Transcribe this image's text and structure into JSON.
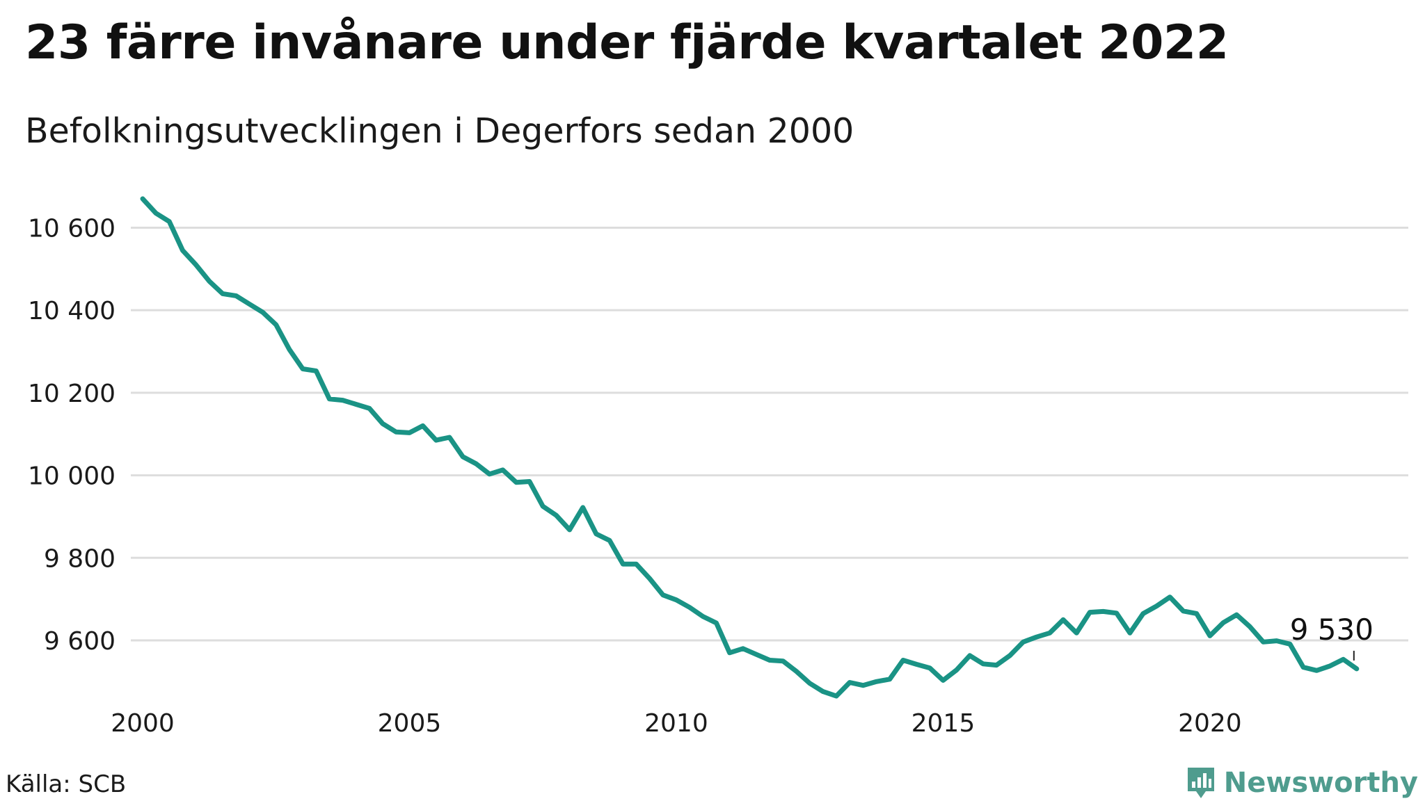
{
  "title": "23 färre invånare under fjärde kvartalet 2022",
  "subtitle": "Befolkningsutvecklingen i Degerfors sedan 2000",
  "source": "Källa: SCB",
  "brand": {
    "name": "Newsworthy",
    "icon": "newsworthy-logo-icon",
    "color": "#4f9c8e"
  },
  "colors": {
    "line": "#1a9385",
    "grid": "#dddddd",
    "text": "#1a1a1a"
  },
  "chart_data": {
    "type": "line",
    "title": "23 färre invånare under fjärde kvartalet 2022",
    "subtitle": "Befolkningsutvecklingen i Degerfors sedan 2000",
    "xlabel": "",
    "ylabel": "",
    "x_ticks": [
      "2000",
      "2005",
      "2010",
      "2015",
      "2020"
    ],
    "y_ticks": [
      "9 600",
      "9 800",
      "10 000",
      "10 200",
      "10 400",
      "10 600"
    ],
    "xlim": [
      2000,
      2023.3
    ],
    "ylim": [
      9450,
      10680
    ],
    "grid": "horizontal",
    "last_value_label": "9 530",
    "series": [
      {
        "x": [
          2000.0,
          2000.25,
          2000.5,
          2000.75,
          2001.0,
          2001.25,
          2001.5,
          2001.75,
          2002.0,
          2002.25,
          2002.5,
          2002.75,
          2003.0,
          2003.25,
          2003.5,
          2003.75,
          2004.0,
          2004.25,
          2004.5,
          2004.75,
          2005.0,
          2005.25,
          2005.5,
          2005.75,
          2006.0,
          2006.25,
          2006.5,
          2006.75,
          2007.0,
          2007.25,
          2007.5,
          2007.75,
          2008.0,
          2008.25,
          2008.5,
          2008.75,
          2009.0,
          2009.25,
          2009.5,
          2009.75,
          2010.0,
          2010.25,
          2010.5,
          2010.75,
          2011.0,
          2011.25,
          2011.5,
          2011.75,
          2012.0,
          2012.25,
          2012.5,
          2012.75,
          2013.0,
          2013.25,
          2013.5,
          2013.75,
          2014.0,
          2014.25,
          2014.5,
          2014.75,
          2015.0,
          2015.25,
          2015.5,
          2015.75,
          2016.0,
          2016.25,
          2016.5,
          2016.75,
          2017.0,
          2017.25,
          2017.5,
          2017.75,
          2018.0,
          2018.25,
          2018.5,
          2018.75,
          2019.0,
          2019.25,
          2019.5,
          2019.75,
          2020.0,
          2020.25,
          2020.5,
          2020.75,
          2021.0,
          2021.25,
          2021.5,
          2021.75,
          2022.0,
          2022.25,
          2022.5,
          2022.75
        ],
        "values": [
          10670,
          10635,
          10615,
          10545,
          10510,
          10470,
          10440,
          10435,
          10415,
          10395,
          10365,
          10305,
          10258,
          10253,
          10185,
          10182,
          10172,
          10162,
          10125,
          10105,
          10103,
          10120,
          10085,
          10092,
          10045,
          10028,
          10003,
          10013,
          9983,
          9985,
          9925,
          9903,
          9868,
          9922,
          9858,
          9842,
          9785,
          9785,
          9750,
          9710,
          9698,
          9680,
          9658,
          9642,
          9570,
          9580,
          9566,
          9552,
          9550,
          9525,
          9496,
          9476,
          9465,
          9498,
          9491,
          9500,
          9506,
          9552,
          9542,
          9533,
          9503,
          9528,
          9563,
          9543,
          9540,
          9563,
          9596,
          9608,
          9618,
          9650,
          9618,
          9668,
          9670,
          9666,
          9618,
          9665,
          9683,
          9705,
          9671,
          9665,
          9611,
          9643,
          9662,
          9633,
          9596,
          9599,
          9591,
          9535,
          9527,
          9538,
          9554,
          9531
        ]
      }
    ]
  }
}
